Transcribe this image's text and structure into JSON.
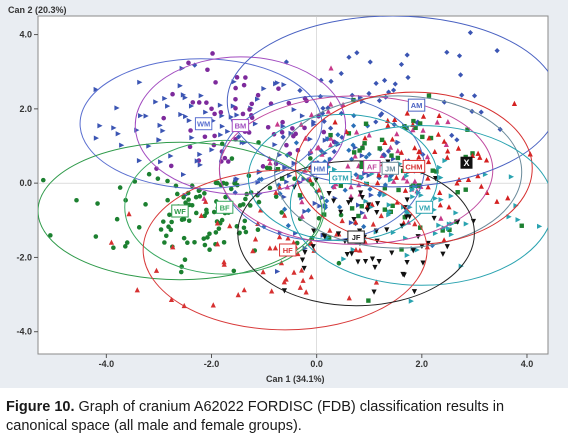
{
  "chart_data": {
    "type": "scatter",
    "xlabel": "Can 1 (34.1%)",
    "ylabel": "Can 2 (20.3%)",
    "xlim": [
      -5.3,
      4.4
    ],
    "ylim": [
      -4.6,
      4.5
    ],
    "xticks": [
      "-4.0",
      "-2.0",
      "0.0",
      "2.0",
      "4.0"
    ],
    "yticks": [
      "4.0",
      "2.0",
      "0.0",
      "-2.0",
      "-4.0"
    ],
    "xtick_values": [
      -4,
      -2,
      0,
      2,
      4
    ],
    "ytick_values": [
      4,
      2,
      0,
      -2,
      -4
    ],
    "groups": [
      {
        "label": "WM",
        "cx": -2.2,
        "cy": 1.6,
        "rx": 2.3,
        "ry": 1.75,
        "color": "#3b55b3",
        "ring": "#5a6fd0",
        "marker": "triangle-right"
      },
      {
        "label": "BM",
        "cx": -1.45,
        "cy": 1.55,
        "rx": 2.0,
        "ry": 1.85,
        "color": "#7d2a9c",
        "ring": "#a24cc0",
        "marker": "circle"
      },
      {
        "label": "WF",
        "cx": -2.6,
        "cy": -0.75,
        "rx": 2.7,
        "ry": 1.85,
        "color": "#1c8030",
        "ring": "#2f9a4a",
        "marker": "circle"
      },
      {
        "label": "BF",
        "cx": -1.75,
        "cy": -0.65,
        "rx": 1.9,
        "ry": 1.8,
        "color": "#1c8030",
        "ring": "#3aa860",
        "marker": "circle"
      },
      {
        "label": "HM",
        "cx": 0.1,
        "cy": 0.4,
        "rx": 1.95,
        "ry": 1.95,
        "color": "#3b55b3",
        "ring": "#4e6fc7",
        "marker": "triangle-right"
      },
      {
        "label": "GTM",
        "cx": 0.5,
        "cy": 0.15,
        "rx": 1.8,
        "ry": 1.7,
        "color": "#2a6fb8",
        "ring": "#2aa3b0",
        "marker": "diamond"
      },
      {
        "label": "AF",
        "cx": 0.75,
        "cy": 0.35,
        "rx": 2.6,
        "ry": 2.0,
        "color": "#c73a8a",
        "ring": "#c04aa0",
        "marker": "triangle-up"
      },
      {
        "label": "AM",
        "cx": 1.45,
        "cy": 2.2,
        "rx": 3.15,
        "ry": 2.3,
        "color": "#3b55b3",
        "ring": "#4a62c2",
        "marker": "diamond"
      },
      {
        "label": "JM",
        "cx": 1.55,
        "cy": 0.3,
        "rx": 2.35,
        "ry": 2.05,
        "color": "#1c8030",
        "ring": "#6a8a9a",
        "marker": "square"
      },
      {
        "label": "CHM",
        "cx": 1.85,
        "cy": 0.4,
        "rx": 2.25,
        "ry": 2.05,
        "color": "#d42020",
        "ring": "#d63030",
        "marker": "triangle-up"
      },
      {
        "label": "VM",
        "cx": 2.0,
        "cy": -0.6,
        "rx": 2.5,
        "ry": 2.15,
        "color": "#2aa3b0",
        "ring": "#2aa3b0",
        "marker": "triangle-right"
      },
      {
        "label": "HF",
        "cx": -0.6,
        "cy": -1.8,
        "rx": 2.7,
        "ry": 2.15,
        "color": "#d63030",
        "ring": "#d83a3a",
        "marker": "triangle-up"
      },
      {
        "label": "JF",
        "cx": 0.75,
        "cy": -1.35,
        "rx": 2.25,
        "ry": 1.95,
        "color": "#111111",
        "ring": "#222222",
        "marker": "triangle-down"
      }
    ],
    "labels": [
      {
        "text": "WM",
        "x": -2.15,
        "y": 1.6
      },
      {
        "text": "BM",
        "x": -1.45,
        "y": 1.55
      },
      {
        "text": "AM",
        "x": 1.9,
        "y": 2.1
      },
      {
        "text": "HM",
        "x": 0.05,
        "y": 0.4
      },
      {
        "text": "GTM",
        "x": 0.45,
        "y": 0.15
      },
      {
        "text": "AF",
        "x": 1.05,
        "y": 0.45
      },
      {
        "text": "JM",
        "x": 1.4,
        "y": 0.4
      },
      {
        "text": "CHM",
        "x": 1.85,
        "y": 0.45
      },
      {
        "text": "WF",
        "x": -2.6,
        "y": -0.75
      },
      {
        "text": "BF",
        "x": -1.75,
        "y": -0.65
      },
      {
        "text": "VM",
        "x": 2.05,
        "y": -0.65
      },
      {
        "text": "HF",
        "x": -0.55,
        "y": -1.8
      },
      {
        "text": "JF",
        "x": 0.75,
        "y": -1.45
      }
    ],
    "unknown_marker": {
      "label": "X",
      "x": 2.85,
      "y": 0.55
    }
  },
  "caption": {
    "figure_label": "Figure 10.",
    "text": " Graph of cranium A62022 FORDISC (FDB) classification results in canonical space (all male and female groups)."
  }
}
